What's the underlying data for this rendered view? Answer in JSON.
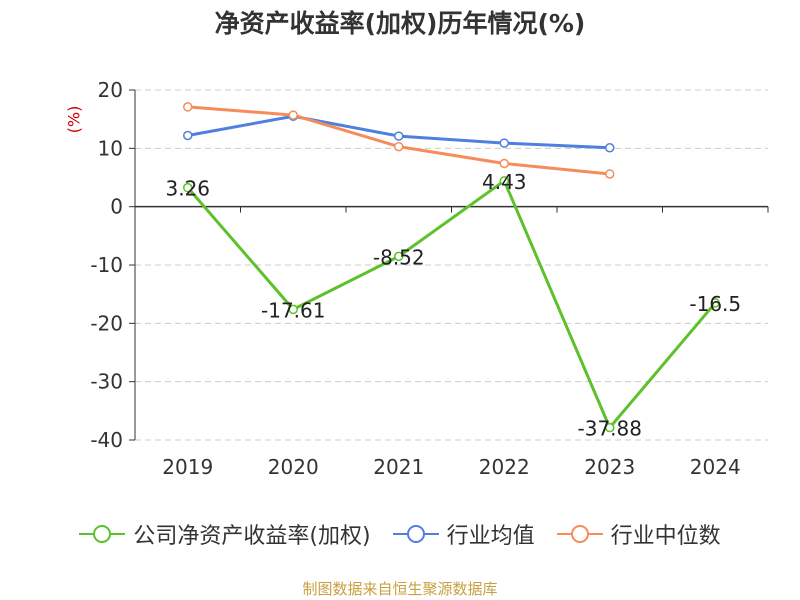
{
  "title": "净资产收益率(加权)历年情况(%)",
  "unit_label": "(%)",
  "source": "制图数据来自恒生聚源数据库",
  "colors": {
    "company": "#5cc12a",
    "industry_avg": "#4f7fdf",
    "industry_median": "#f58c5a",
    "grid": "#cccccc",
    "axis": "#333333",
    "unit": "#cc0000",
    "source": "#c8a040"
  },
  "chart_data": {
    "type": "line",
    "categories": [
      "2019",
      "2020",
      "2021",
      "2022",
      "2023",
      "2024"
    ],
    "ylim": [
      -40,
      20
    ],
    "yticks": [
      20,
      10,
      0,
      -10,
      -20,
      -30,
      -40
    ],
    "grid": true,
    "legend_position": "bottom",
    "series": [
      {
        "name": "公司净资产收益率(加权)",
        "key": "company",
        "values": [
          3.26,
          -17.61,
          -8.52,
          4.43,
          -37.88,
          -16.5
        ],
        "labels": [
          "3.26",
          "-17.61",
          "-8.52",
          "4.43",
          "-37.88",
          "-16.5"
        ]
      },
      {
        "name": "行业均值",
        "key": "industry_avg",
        "values": [
          12.2,
          15.5,
          12.1,
          10.9,
          10.1,
          null
        ]
      },
      {
        "name": "行业中位数",
        "key": "industry_median",
        "values": [
          17.1,
          15.7,
          10.3,
          7.4,
          5.6,
          null
        ]
      }
    ]
  }
}
